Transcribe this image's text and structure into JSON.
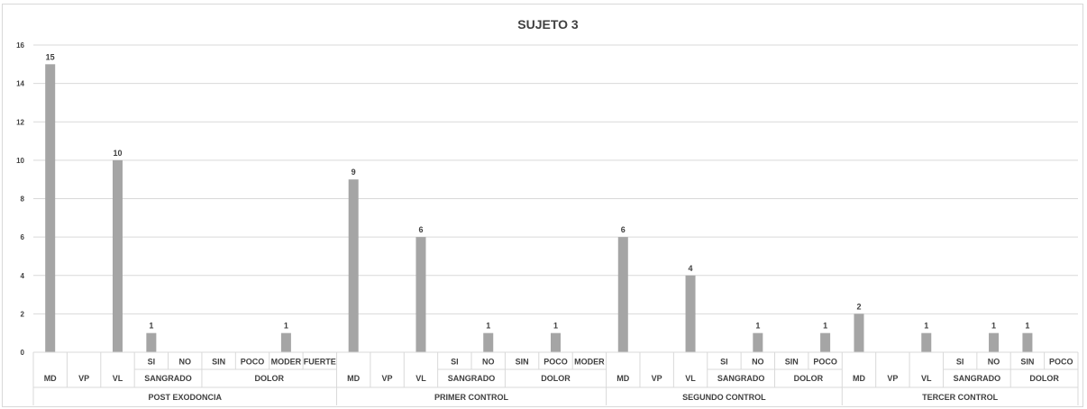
{
  "chart_data": {
    "type": "bar",
    "title": "SUJETO 3",
    "xlabel": "",
    "ylabel": "",
    "ylim": [
      0,
      16
    ],
    "yticks": [
      0,
      2,
      4,
      6,
      8,
      10,
      12,
      14,
      16
    ],
    "grid": true,
    "legend": "none",
    "bar_color": "#a5a5a5",
    "groups": [
      {
        "name": "POST EXODONCIA",
        "subgroups": [
          {
            "name": "",
            "items": [
              {
                "label": "MD",
                "value": 15
              }
            ]
          },
          {
            "name": "",
            "items": [
              {
                "label": "VP",
                "value": 0
              }
            ]
          },
          {
            "name": "",
            "items": [
              {
                "label": "VL",
                "value": 10
              }
            ]
          },
          {
            "name": "SANGRADO",
            "items": [
              {
                "label": "SI",
                "value": 1
              },
              {
                "label": "NO",
                "value": 0
              }
            ]
          },
          {
            "name": "DOLOR",
            "items": [
              {
                "label": "SIN",
                "value": 0
              },
              {
                "label": "POCO",
                "value": 0
              },
              {
                "label": "MODER",
                "value": 1
              },
              {
                "label": "FUERTE",
                "value": 0
              }
            ]
          }
        ]
      },
      {
        "name": "PRIMER CONTROL",
        "subgroups": [
          {
            "name": "",
            "items": [
              {
                "label": "MD",
                "value": 9
              }
            ]
          },
          {
            "name": "",
            "items": [
              {
                "label": "VP",
                "value": 0
              }
            ]
          },
          {
            "name": "",
            "items": [
              {
                "label": "VL",
                "value": 6
              }
            ]
          },
          {
            "name": "SANGRADO",
            "items": [
              {
                "label": "SI",
                "value": 0
              },
              {
                "label": "NO",
                "value": 1
              }
            ]
          },
          {
            "name": "DOLOR",
            "items": [
              {
                "label": "SIN",
                "value": 0
              },
              {
                "label": "POCO",
                "value": 1
              },
              {
                "label": "MODER",
                "value": 0
              }
            ]
          }
        ]
      },
      {
        "name": "SEGUNDO CONTROL",
        "subgroups": [
          {
            "name": "",
            "items": [
              {
                "label": "MD",
                "value": 6
              }
            ]
          },
          {
            "name": "",
            "items": [
              {
                "label": "VP",
                "value": 0
              }
            ]
          },
          {
            "name": "",
            "items": [
              {
                "label": "VL",
                "value": 4
              }
            ]
          },
          {
            "name": "SANGRADO",
            "items": [
              {
                "label": "SI",
                "value": 0
              },
              {
                "label": "NO",
                "value": 1
              }
            ]
          },
          {
            "name": "DOLOR",
            "items": [
              {
                "label": "SIN",
                "value": 0
              },
              {
                "label": "POCO",
                "value": 1
              }
            ]
          }
        ]
      },
      {
        "name": "TERCER CONTROL",
        "subgroups": [
          {
            "name": "",
            "items": [
              {
                "label": "MD",
                "value": 2
              }
            ]
          },
          {
            "name": "",
            "items": [
              {
                "label": "VP",
                "value": 0
              }
            ]
          },
          {
            "name": "",
            "items": [
              {
                "label": "VL",
                "value": 1
              }
            ]
          },
          {
            "name": "SANGRADO",
            "items": [
              {
                "label": "SI",
                "value": 0
              },
              {
                "label": "NO",
                "value": 1
              }
            ]
          },
          {
            "name": "DOLOR",
            "items": [
              {
                "label": "SIN",
                "value": 1
              },
              {
                "label": "POCO",
                "value": 0
              }
            ]
          }
        ]
      }
    ]
  }
}
